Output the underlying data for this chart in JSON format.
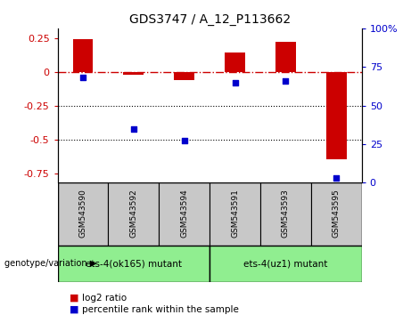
{
  "title": "GDS3747 / A_12_P113662",
  "samples": [
    "GSM543590",
    "GSM543592",
    "GSM543594",
    "GSM543591",
    "GSM543593",
    "GSM543595"
  ],
  "log2_ratio": [
    0.24,
    -0.02,
    -0.06,
    0.14,
    0.22,
    -0.65
  ],
  "percentile_rank": [
    68,
    35,
    27,
    65,
    66,
    3
  ],
  "bar_color": "#cc0000",
  "dot_color": "#0000cc",
  "ylim_left": [
    -0.82,
    0.32
  ],
  "ylim_right": [
    0,
    100
  ],
  "yticks_left": [
    0.25,
    0,
    -0.25,
    -0.5,
    -0.75
  ],
  "yticks_right": [
    100,
    75,
    50,
    25,
    0
  ],
  "dotted_lines": [
    -0.25,
    -0.5
  ],
  "group1_label": "ets-4(ok165) mutant",
  "group2_label": "ets-4(uz1) mutant",
  "group_color": "#90ee90",
  "sample_box_color": "#c8c8c8",
  "legend_log2_label": "log2 ratio",
  "legend_pct_label": "percentile rank within the sample",
  "genotype_label": "genotype/variation"
}
